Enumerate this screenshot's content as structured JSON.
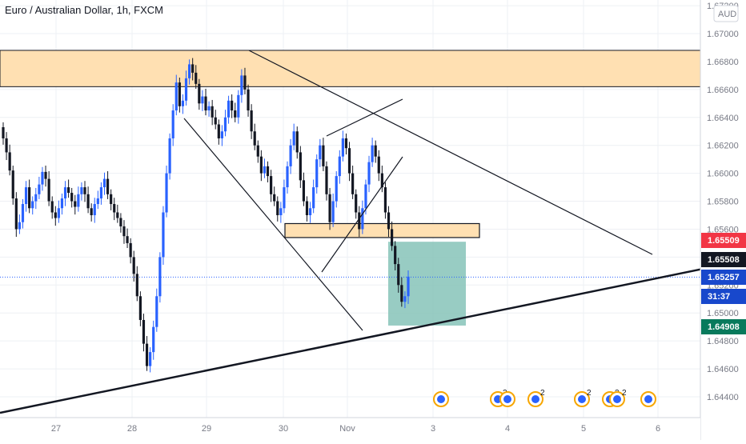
{
  "header": {
    "title": "Euro / Australian Dollar, 1h, FXCM"
  },
  "axis_badge": "AUD",
  "price_labels": [
    {
      "value": "1.65509",
      "bg": "#f23645",
      "fg": "#ffffff"
    },
    {
      "value": "1.65508",
      "bg": "#131722",
      "fg": "#ffffff"
    },
    {
      "value": "1.65257",
      "bg": "#1848cc",
      "fg": "#ffffff"
    },
    {
      "value": "31:37",
      "bg": "#1848cc",
      "fg": "#ffffff"
    },
    {
      "value": "1.64908",
      "bg": "#087a5c",
      "fg": "#ffffff"
    }
  ],
  "event_badges": [
    "2",
    "2",
    "2",
    "2",
    "2"
  ],
  "colors": {
    "bull": "#2962ff",
    "bear": "#131722",
    "zone_fill": "#ffe0b2",
    "target_fill": "#86c3b8",
    "grid": "#eef0f4"
  },
  "chart_data": {
    "type": "candlestick",
    "title": "Euro / Australian Dollar, 1h, FXCM",
    "x_ticks": [
      "27",
      "28",
      "29",
      "30",
      "Nov",
      "3",
      "4",
      "5",
      "6"
    ],
    "y_ticks": [
      "1.67200",
      "1.67000",
      "1.66800",
      "1.66600",
      "1.66400",
      "1.66200",
      "1.66000",
      "1.65800",
      "1.65600",
      "1.65400",
      "1.65200",
      "1.65000",
      "1.64800",
      "1.64600",
      "1.64400"
    ],
    "ylim": [
      1.6429,
      1.6726
    ],
    "current_price": 1.65257,
    "countdown": "31:37",
    "resistance_zone": [
      1.6662,
      1.6688
    ],
    "support_box": [
      1.6554,
      1.6564
    ],
    "target_box": [
      1.6491,
      1.6551
    ],
    "closes": [
      1.6625,
      1.6615,
      1.6602,
      1.6582,
      1.656,
      1.6565,
      1.6578,
      1.659,
      1.6575,
      1.658,
      1.6585,
      1.6592,
      1.6601,
      1.6596,
      1.658,
      1.6572,
      1.6568,
      1.6575,
      1.6582,
      1.659,
      1.6586,
      1.658,
      1.6576,
      1.6585,
      1.659,
      1.6585,
      1.6575,
      1.657,
      1.6578,
      1.6582,
      1.659,
      1.6596,
      1.6585,
      1.6578,
      1.6572,
      1.6568,
      1.6562,
      1.6555,
      1.655,
      1.654,
      1.6528,
      1.6512,
      1.6495,
      1.6478,
      1.6462,
      1.6472,
      1.649,
      1.6512,
      1.654,
      1.6572,
      1.66,
      1.6625,
      1.6645,
      1.6665,
      1.6648,
      1.6652,
      1.6668,
      1.6678,
      1.6672,
      1.6664,
      1.665,
      1.6655,
      1.6645,
      1.6648,
      1.664,
      1.6635,
      1.6625,
      1.663,
      1.664,
      1.6652,
      1.6645,
      1.664,
      1.6656,
      1.667,
      1.666,
      1.6645,
      1.663,
      1.662,
      1.6612,
      1.66,
      1.6605,
      1.6598,
      1.6585,
      1.658,
      1.657,
      1.6575,
      1.659,
      1.6605,
      1.662,
      1.663,
      1.6615,
      1.6595,
      1.658,
      1.657,
      1.6575,
      1.659,
      1.661,
      1.662,
      1.6605,
      1.6585,
      1.6565,
      1.658,
      1.6598,
      1.6612,
      1.6625,
      1.6618,
      1.66,
      1.6585,
      1.6572,
      1.656,
      1.6575,
      1.6592,
      1.6608,
      1.662,
      1.6612,
      1.66,
      1.659,
      1.6572,
      1.656,
      1.6548,
      1.6535,
      1.652,
      1.6508,
      1.6512,
      1.6526
    ]
  }
}
